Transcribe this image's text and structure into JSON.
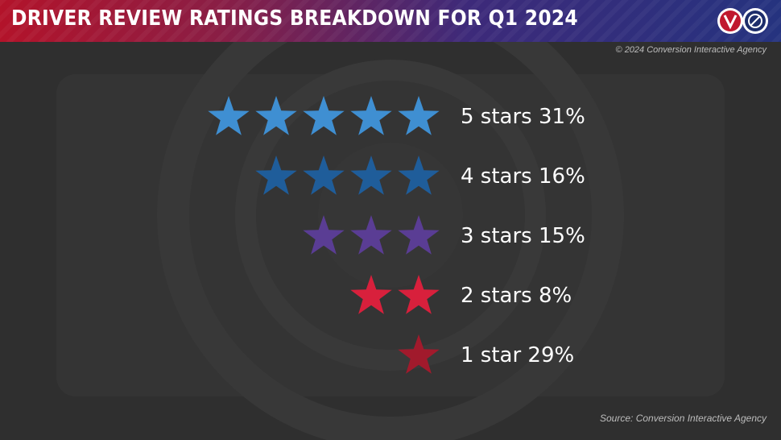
{
  "header": {
    "title": "DRIVER REVIEW RATINGS BREAKDOWN FOR Q1 2024"
  },
  "copyright": "© 2024 Conversion Interactive Agency",
  "source": "Source: Conversion Interactive Agency",
  "chart_data": {
    "type": "table",
    "title": "DRIVER REVIEW RATINGS BREAKDOWN FOR Q1 2024",
    "rows": [
      {
        "stars": 5,
        "label": "5 stars 31%",
        "percent": 31,
        "color": "#3f8fd2"
      },
      {
        "stars": 4,
        "label": "4 stars 16%",
        "percent": 16,
        "color": "#1f5d9a"
      },
      {
        "stars": 3,
        "label": "3 stars 15%",
        "percent": 15,
        "color": "#5a3d94"
      },
      {
        "stars": 2,
        "label": "2 stars 8%",
        "percent": 8,
        "color": "#d8203c"
      },
      {
        "stars": 1,
        "label": "1 star 29%",
        "percent": 29,
        "color": "#a11a2c"
      }
    ]
  },
  "colors": {
    "background": "#2f2f2f",
    "header_red": "#b3132a",
    "header_blue": "#25337f"
  },
  "icons": {
    "left_logo": "red-circle-logo-icon",
    "right_logo": "blue-circle-logo-icon"
  }
}
